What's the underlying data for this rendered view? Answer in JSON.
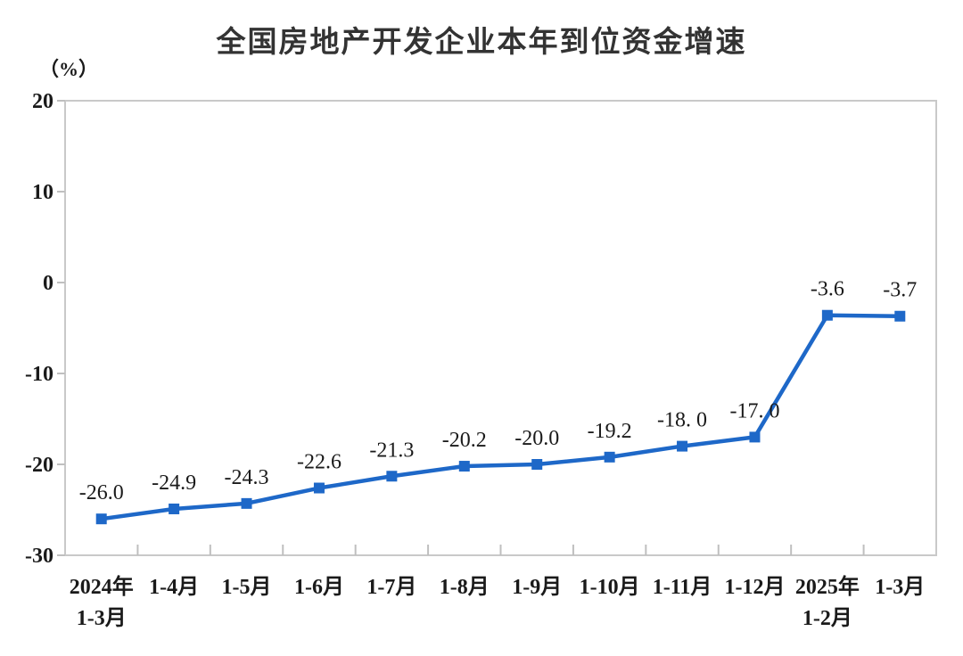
{
  "chart_data": {
    "type": "line",
    "title": "全国房地产开发企业本年到位资金增速",
    "unit_label": "（%）",
    "categories": [
      "2024年\n1-3月",
      "1-4月",
      "1-5月",
      "1-6月",
      "1-7月",
      "1-8月",
      "1-9月",
      "1-10月",
      "1-11月",
      "1-12月",
      "2025年\n1-2月",
      "1-3月"
    ],
    "values": [
      -26.0,
      -24.9,
      -24.3,
      -22.6,
      -21.3,
      -20.2,
      -20.0,
      -19.2,
      -18.0,
      -17.0,
      -3.6,
      -3.7
    ],
    "data_labels": [
      "-26.0",
      "-24.9",
      "-24.3",
      "-22.6",
      "-21.3",
      "-20.2",
      "-20.0",
      "-19.2",
      "-18. 0",
      "-17. 0",
      "-3.6",
      "-3.7"
    ],
    "ylim": [
      -30,
      20
    ],
    "yticks": [
      20,
      10,
      0,
      -10,
      -20,
      -30
    ],
    "grid": false,
    "legend": "none",
    "xlabel": "",
    "ylabel": "（%）",
    "colors": {
      "line": "#1E68C8",
      "marker": "#1E68C8",
      "axis_text": "#1a1a1a",
      "title_text": "#333333",
      "plot_border": "#c9c9c9",
      "tick": "#bfbfbf",
      "background": "#ffffff"
    }
  }
}
